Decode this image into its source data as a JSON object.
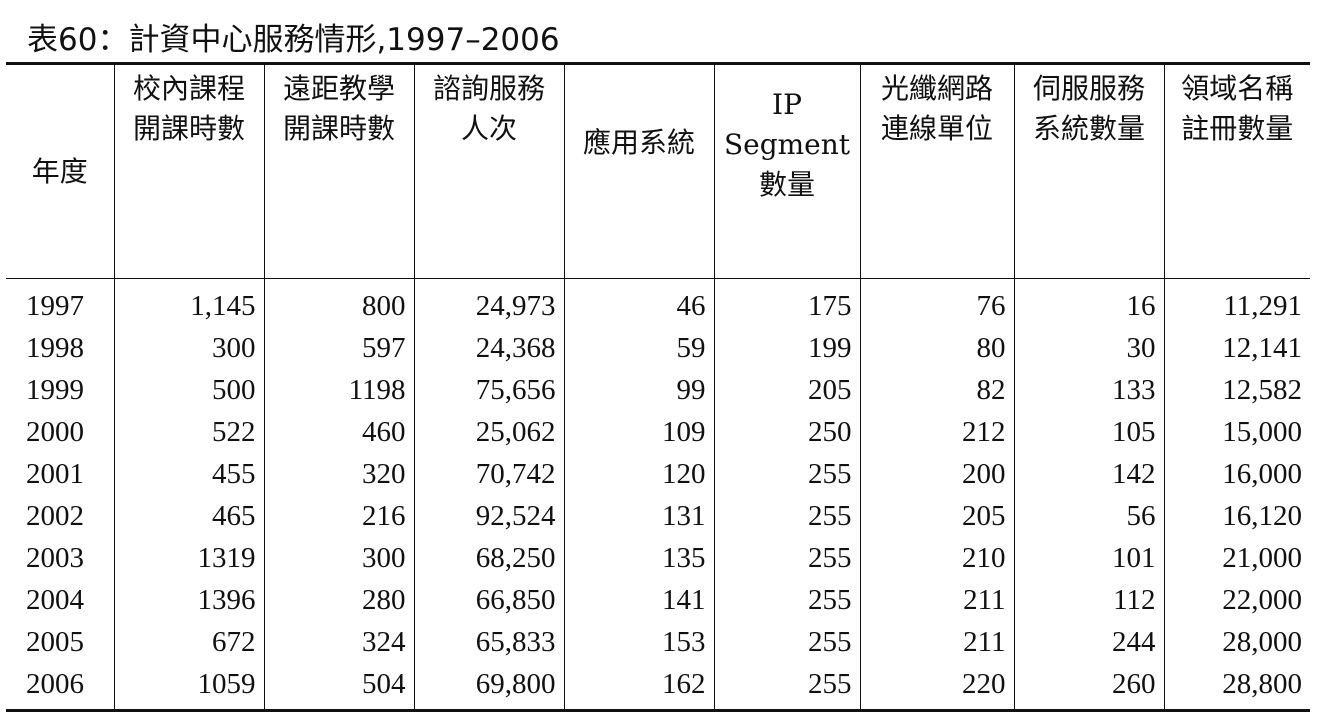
{
  "caption": "表60：計資中心服務情形,1997–2006",
  "columns": [
    {
      "lines": [
        "年度"
      ]
    },
    {
      "lines": [
        "校內課程",
        "開課時數"
      ]
    },
    {
      "lines": [
        "遠距教學",
        "開課時數"
      ]
    },
    {
      "lines": [
        "諮詢服務",
        "人次"
      ]
    },
    {
      "lines": [
        "應用系統"
      ]
    },
    {
      "lines": [
        "IP",
        "Segment",
        "數量"
      ]
    },
    {
      "lines": [
        "光纖網路",
        "連線單位"
      ]
    },
    {
      "lines": [
        "伺服服務",
        "系統數量"
      ]
    },
    {
      "lines": [
        "領域名稱",
        "註冊數量"
      ]
    }
  ],
  "rows": [
    [
      "1997",
      "1,145",
      "800",
      "24,973",
      "46",
      "175",
      "76",
      "16",
      "11,291"
    ],
    [
      "1998",
      "300",
      "597",
      "24,368",
      "59",
      "199",
      "80",
      "30",
      "12,141"
    ],
    [
      "1999",
      "500",
      "1198",
      "75,656",
      "99",
      "205",
      "82",
      "133",
      "12,582"
    ],
    [
      "2000",
      "522",
      "460",
      "25,062",
      "109",
      "250",
      "212",
      "105",
      "15,000"
    ],
    [
      "2001",
      "455",
      "320",
      "70,742",
      "120",
      "255",
      "200",
      "142",
      "16,000"
    ],
    [
      "2002",
      "465",
      "216",
      "92,524",
      "131",
      "255",
      "205",
      "56",
      "16,120"
    ],
    [
      "2003",
      "1319",
      "300",
      "68,250",
      "135",
      "255",
      "210",
      "101",
      "21,000"
    ],
    [
      "2004",
      "1396",
      "280",
      "66,850",
      "141",
      "255",
      "211",
      "112",
      "22,000"
    ],
    [
      "2005",
      "672",
      "324",
      "65,833",
      "153",
      "255",
      "211",
      "244",
      "28,000"
    ],
    [
      "2006",
      "1059",
      "504",
      "69,800",
      "162",
      "255",
      "220",
      "260",
      "28,800"
    ]
  ]
}
